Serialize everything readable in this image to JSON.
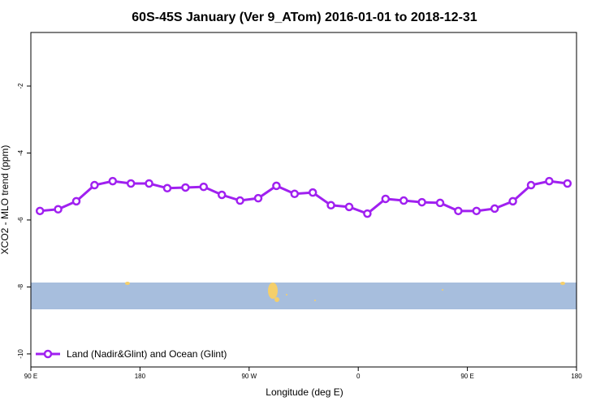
{
  "chart_data": {
    "type": "line",
    "title": "60S-45S January (Ver 9_ATom)   2016-01-01 to 2018-12-31",
    "x_label": "Longitude (deg E)",
    "y_label": "XCO2 - MLO trend (ppm)",
    "x": [
      97.5,
      112.5,
      127.5,
      142.5,
      157.5,
      172.5,
      187.5,
      202.5,
      217.5,
      232.5,
      247.5,
      262.5,
      277.5,
      292.5,
      307.5,
      322.5,
      337.5,
      352.5,
      367.5,
      382.5,
      397.5,
      412.5,
      427.5,
      442.5,
      457.5,
      472.5,
      487.5,
      502.5,
      517.5,
      532.5
    ],
    "series": [
      {
        "name": "Land (Nadir&Glint) and Ocean (Glint)",
        "color": "#a020f0",
        "values": [
          -5.73,
          -5.68,
          -5.44,
          -4.96,
          -4.84,
          -4.91,
          -4.91,
          -5.05,
          -5.03,
          -5.01,
          -5.25,
          -5.42,
          -5.35,
          -4.98,
          -5.22,
          -5.18,
          -5.56,
          -5.61,
          -5.81,
          -5.37,
          -5.42,
          -5.47,
          -5.49,
          -5.73,
          -5.73,
          -5.66,
          -5.44,
          -4.96,
          -4.84,
          -4.91
        ]
      }
    ],
    "xlim": [
      90,
      540
    ],
    "ylim": [
      -10.39,
      -0.4
    ],
    "xticks": [
      {
        "value": 90,
        "label": "90 E"
      },
      180,
      {
        "value": 270,
        "label": "90 W"
      },
      {
        "value": 360,
        "label": "0"
      },
      {
        "value": 450,
        "label": "90 E"
      },
      {
        "value": 540,
        "label": "180"
      }
    ],
    "yticks": [
      -10,
      -8,
      -6,
      -4,
      -2
    ],
    "legend": "bottom-left"
  }
}
